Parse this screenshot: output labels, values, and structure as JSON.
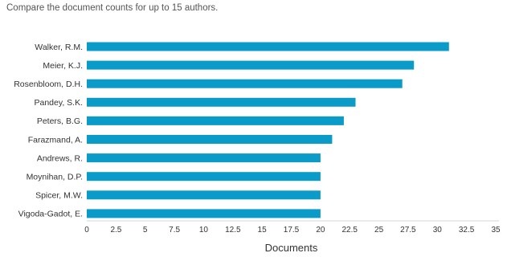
{
  "subtitle": "Compare the document counts for up to 15 authors.",
  "colors": {
    "bar": "#0b9bc9",
    "axis": "#d6d6d6",
    "text": "#333333"
  },
  "chart_data": {
    "type": "bar",
    "orientation": "horizontal",
    "title": "",
    "xlabel": "Documents",
    "ylabel": "",
    "xlim": [
      0,
      35
    ],
    "x_ticks": [
      "0",
      "2.5",
      "5",
      "7.5",
      "10",
      "12.5",
      "15",
      "17.5",
      "20",
      "22.5",
      "25",
      "27.5",
      "30",
      "32.5",
      "35"
    ],
    "categories": [
      "Walker, R.M.",
      "Meier, K.J.",
      "Rosenbloom, D.H.",
      "Pandey, S.K.",
      "Peters, B.G.",
      "Farazmand, A.",
      "Andrews, R.",
      "Moynihan, D.P.",
      "Spicer, M.W.",
      "Vigoda-Gadot, E."
    ],
    "values": [
      31,
      28,
      27,
      23,
      22,
      21,
      20,
      20,
      20,
      20
    ],
    "grid": false,
    "legend": "none"
  }
}
